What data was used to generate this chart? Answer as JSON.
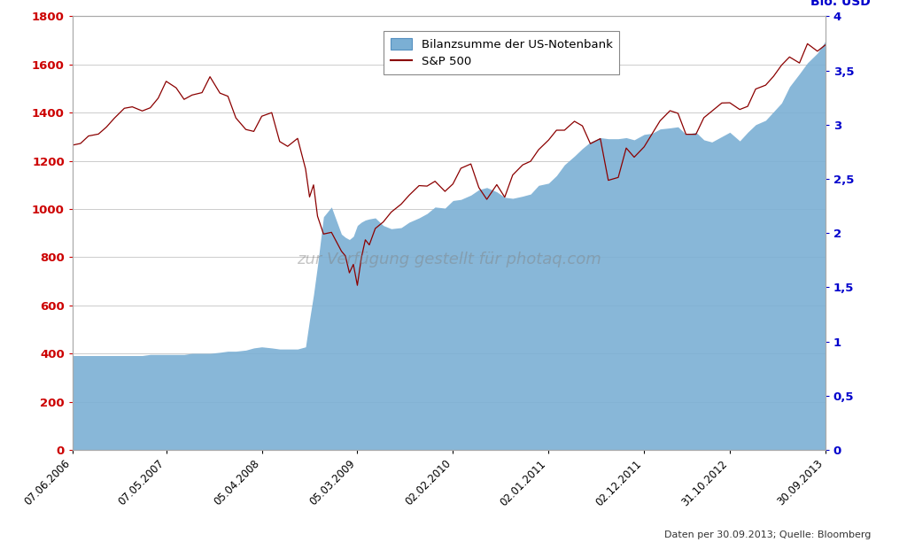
{
  "source_text": "Daten per 30.09.2013; Quelle: Bloomberg",
  "legend_fed": "Bilanzsumme der US-Notenbank",
  "legend_sp": "S&P 500",
  "ylim_left": [
    0,
    1800
  ],
  "ylim_right": [
    0,
    4
  ],
  "yticks_left": [
    0,
    200,
    400,
    600,
    800,
    1000,
    1200,
    1400,
    1600,
    1800
  ],
  "yticks_right": [
    0,
    0.5,
    1,
    1.5,
    2,
    2.5,
    3,
    3.5,
    4
  ],
  "ytick_labels_right": [
    "0",
    "0,5",
    "1",
    "1,5",
    "2",
    "2,5",
    "3",
    "3,5",
    "4"
  ],
  "ylabel_right": "Bio. USD",
  "background_color": "#ffffff",
  "fed_fill_color": "#7bafd4",
  "sp500_color": "#8b0000",
  "grid_color": "#cccccc",
  "left_tick_color": "#cc0000",
  "right_tick_color": "#0000cc",
  "watermark": "zur Verfügung gestellt für photaq.com",
  "dates": [
    "2006-06-07",
    "2006-07-05",
    "2006-08-02",
    "2006-09-06",
    "2006-10-04",
    "2006-11-01",
    "2006-12-06",
    "2007-01-03",
    "2007-02-07",
    "2007-03-07",
    "2007-04-04",
    "2007-05-02",
    "2007-06-06",
    "2007-07-04",
    "2007-08-01",
    "2007-09-05",
    "2007-10-03",
    "2007-11-07",
    "2007-12-05",
    "2008-01-02",
    "2008-02-06",
    "2008-03-05",
    "2008-04-02",
    "2008-05-07",
    "2008-06-04",
    "2008-07-02",
    "2008-08-06",
    "2008-09-03",
    "2008-09-17",
    "2008-10-01",
    "2008-10-15",
    "2008-11-05",
    "2008-12-03",
    "2009-01-07",
    "2009-01-21",
    "2009-02-04",
    "2009-02-18",
    "2009-03-04",
    "2009-03-18",
    "2009-04-01",
    "2009-04-15",
    "2009-05-06",
    "2009-06-03",
    "2009-07-01",
    "2009-08-05",
    "2009-09-02",
    "2009-10-07",
    "2009-11-04",
    "2009-12-02",
    "2010-01-06",
    "2010-02-03",
    "2010-03-03",
    "2010-04-07",
    "2010-05-05",
    "2010-06-02",
    "2010-07-07",
    "2010-08-04",
    "2010-09-01",
    "2010-10-06",
    "2010-11-03",
    "2010-12-01",
    "2011-01-05",
    "2011-02-02",
    "2011-03-02",
    "2011-04-06",
    "2011-05-04",
    "2011-06-01",
    "2011-07-06",
    "2011-08-03",
    "2011-09-07",
    "2011-10-05",
    "2011-11-02",
    "2011-12-07",
    "2012-01-04",
    "2012-02-01",
    "2012-03-07",
    "2012-04-04",
    "2012-05-02",
    "2012-06-06",
    "2012-07-04",
    "2012-08-01",
    "2012-09-05",
    "2012-10-03",
    "2012-11-07",
    "2012-12-05",
    "2013-01-02",
    "2013-02-06",
    "2013-03-06",
    "2013-04-03",
    "2013-05-01",
    "2013-06-05",
    "2013-07-03",
    "2013-08-07",
    "2013-09-04"
  ],
  "sp500": [
    1265,
    1272,
    1303,
    1311,
    1340,
    1377,
    1418,
    1424,
    1407,
    1420,
    1460,
    1530,
    1503,
    1455,
    1473,
    1483,
    1549,
    1481,
    1468,
    1378,
    1330,
    1322,
    1385,
    1400,
    1280,
    1260,
    1293,
    1166,
    1050,
    1100,
    970,
    896,
    903,
    825,
    805,
    735,
    770,
    683,
    797,
    872,
    851,
    919,
    946,
    987,
    1020,
    1057,
    1097,
    1095,
    1115,
    1073,
    1104,
    1169,
    1187,
    1089,
    1040,
    1101,
    1049,
    1141,
    1183,
    1198,
    1246,
    1286,
    1327,
    1327,
    1364,
    1345,
    1271,
    1292,
    1119,
    1131,
    1253,
    1215,
    1258,
    1312,
    1366,
    1408,
    1397,
    1310,
    1310,
    1379,
    1406,
    1440,
    1441,
    1413,
    1426,
    1498,
    1514,
    1551,
    1597,
    1631,
    1606,
    1686,
    1655,
    1681
  ],
  "fed_balance": [
    0.87,
    0.87,
    0.87,
    0.87,
    0.87,
    0.87,
    0.87,
    0.87,
    0.87,
    0.88,
    0.88,
    0.88,
    0.88,
    0.88,
    0.89,
    0.89,
    0.89,
    0.9,
    0.91,
    0.91,
    0.92,
    0.94,
    0.95,
    0.94,
    0.93,
    0.93,
    0.93,
    0.95,
    1.2,
    1.43,
    1.7,
    2.15,
    2.24,
    1.99,
    1.96,
    1.94,
    1.97,
    2.07,
    2.1,
    2.12,
    2.13,
    2.14,
    2.07,
    2.04,
    2.05,
    2.1,
    2.14,
    2.18,
    2.24,
    2.23,
    2.3,
    2.31,
    2.35,
    2.4,
    2.42,
    2.38,
    2.33,
    2.32,
    2.34,
    2.36,
    2.44,
    2.46,
    2.53,
    2.63,
    2.71,
    2.78,
    2.84,
    2.88,
    2.87,
    2.87,
    2.88,
    2.86,
    2.91,
    2.92,
    2.96,
    2.97,
    2.98,
    2.91,
    2.93,
    2.86,
    2.84,
    2.89,
    2.93,
    2.85,
    2.93,
    3.0,
    3.04,
    3.12,
    3.2,
    3.35,
    3.47,
    3.57,
    3.66,
    3.77
  ],
  "xtick_dates": [
    "2006-06-07",
    "2007-05-02",
    "2008-04-02",
    "2009-03-04",
    "2010-02-03",
    "2011-01-05",
    "2011-12-07",
    "2012-10-03",
    "2013-09-04"
  ],
  "xtick_labels": [
    "07.06.2006",
    "07.05.2007",
    "05.04.2008",
    "05.03.2009",
    "02.02.2010",
    "02.01.2011",
    "02.12.2011",
    "31.10.2012",
    "30.09.2013"
  ]
}
